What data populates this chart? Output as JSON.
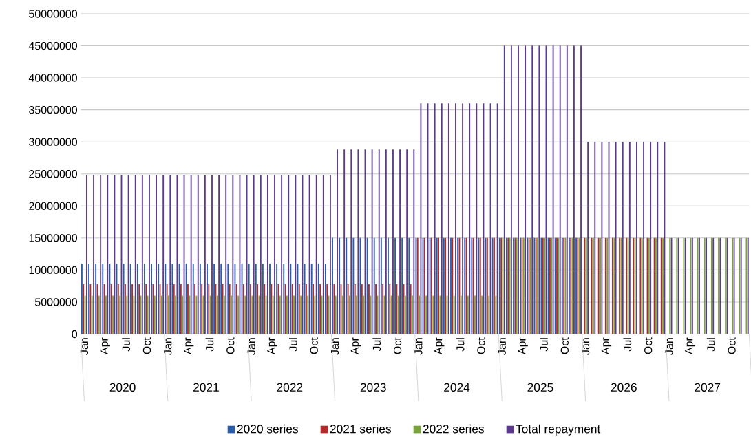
{
  "chart_data": {
    "type": "bar",
    "categories": [
      "Jan",
      null,
      null,
      "Apr",
      null,
      null,
      "Jul",
      null,
      null,
      "Oct",
      null,
      null,
      "Jan",
      null,
      null,
      "Apr",
      null,
      null,
      "Jul",
      null,
      null,
      "Oct",
      null,
      null,
      "Jan",
      null,
      null,
      "Apr",
      null,
      null,
      "Jul",
      null,
      null,
      "Oct",
      null,
      null,
      "Jan",
      null,
      null,
      "Apr",
      null,
      null,
      "Jul",
      null,
      null,
      "Oct",
      null,
      null,
      "Jan",
      null,
      null,
      "Apr",
      null,
      null,
      "Jul",
      null,
      null,
      "Oct",
      null,
      null,
      "Jan",
      null,
      null,
      "Apr",
      null,
      null,
      "Jul",
      null,
      null,
      "Oct",
      null,
      null,
      "Jan",
      null,
      null,
      "Apr",
      null,
      null,
      "Jul",
      null,
      null,
      "Oct",
      null,
      null,
      "Jan",
      null,
      null,
      "Apr",
      null,
      null,
      "Jul",
      null,
      null,
      "Oct",
      null,
      null
    ],
    "annotations": [
      "2020",
      "2021",
      "2022",
      "2023",
      "2024",
      "2025",
      "2026",
      "2027"
    ],
    "series": [
      {
        "name": "2020 series",
        "color": "#2a5caa",
        "values": [
          11000000,
          11000000,
          11000000,
          11000000,
          11000000,
          11000000,
          11000000,
          11000000,
          11000000,
          11000000,
          11000000,
          11000000,
          11000000,
          11000000,
          11000000,
          11000000,
          11000000,
          11000000,
          11000000,
          11000000,
          11000000,
          11000000,
          11000000,
          11000000,
          11000000,
          11000000,
          11000000,
          11000000,
          11000000,
          11000000,
          11000000,
          11000000,
          11000000,
          11000000,
          11000000,
          11000000,
          15000000,
          15000000,
          15000000,
          15000000,
          15000000,
          15000000,
          15000000,
          15000000,
          15000000,
          15000000,
          15000000,
          15000000,
          15000000,
          15000000,
          15000000,
          15000000,
          15000000,
          15000000,
          15000000,
          15000000,
          15000000,
          15000000,
          15000000,
          15000000,
          15000000,
          15000000,
          15000000,
          15000000,
          15000000,
          15000000,
          15000000,
          15000000,
          15000000,
          15000000,
          15000000,
          15000000,
          0,
          0,
          0,
          0,
          0,
          0,
          0,
          0,
          0,
          0,
          0,
          0,
          0,
          0,
          0,
          0,
          0,
          0,
          0,
          0,
          0,
          0,
          0,
          0
        ]
      },
      {
        "name": "2021 series",
        "color": "#b22a2a",
        "values": [
          7800000,
          7800000,
          7800000,
          7800000,
          7800000,
          7800000,
          7800000,
          7800000,
          7800000,
          7800000,
          7800000,
          7800000,
          7800000,
          7800000,
          7800000,
          7800000,
          7800000,
          7800000,
          7800000,
          7800000,
          7800000,
          7800000,
          7800000,
          7800000,
          7800000,
          7800000,
          7800000,
          7800000,
          7800000,
          7800000,
          7800000,
          7800000,
          7800000,
          7800000,
          7800000,
          7800000,
          7800000,
          7800000,
          7800000,
          7800000,
          7800000,
          7800000,
          7800000,
          7800000,
          7800000,
          7800000,
          7800000,
          7800000,
          15000000,
          15000000,
          15000000,
          15000000,
          15000000,
          15000000,
          15000000,
          15000000,
          15000000,
          15000000,
          15000000,
          15000000,
          15000000,
          15000000,
          15000000,
          15000000,
          15000000,
          15000000,
          15000000,
          15000000,
          15000000,
          15000000,
          15000000,
          15000000,
          15000000,
          15000000,
          15000000,
          15000000,
          15000000,
          15000000,
          15000000,
          15000000,
          15000000,
          15000000,
          15000000,
          15000000,
          0,
          0,
          0,
          0,
          0,
          0,
          0,
          0,
          0,
          0,
          0,
          0
        ]
      },
      {
        "name": "2022 series",
        "color": "#77a33a",
        "values": [
          6000000,
          6000000,
          6000000,
          6000000,
          6000000,
          6000000,
          6000000,
          6000000,
          6000000,
          6000000,
          6000000,
          6000000,
          6000000,
          6000000,
          6000000,
          6000000,
          6000000,
          6000000,
          6000000,
          6000000,
          6000000,
          6000000,
          6000000,
          6000000,
          6000000,
          6000000,
          6000000,
          6000000,
          6000000,
          6000000,
          6000000,
          6000000,
          6000000,
          6000000,
          6000000,
          6000000,
          6000000,
          6000000,
          6000000,
          6000000,
          6000000,
          6000000,
          6000000,
          6000000,
          6000000,
          6000000,
          6000000,
          6000000,
          6000000,
          6000000,
          6000000,
          6000000,
          6000000,
          6000000,
          6000000,
          6000000,
          6000000,
          6000000,
          6000000,
          6000000,
          15000000,
          15000000,
          15000000,
          15000000,
          15000000,
          15000000,
          15000000,
          15000000,
          15000000,
          15000000,
          15000000,
          15000000,
          15000000,
          15000000,
          15000000,
          15000000,
          15000000,
          15000000,
          15000000,
          15000000,
          15000000,
          15000000,
          15000000,
          15000000,
          15000000,
          15000000,
          15000000,
          15000000,
          15000000,
          15000000,
          15000000,
          15000000,
          15000000,
          15000000,
          15000000,
          15000000
        ]
      },
      {
        "name": "Total repayment",
        "color": "#5b3a8e",
        "values": [
          24800000,
          24800000,
          24800000,
          24800000,
          24800000,
          24800000,
          24800000,
          24800000,
          24800000,
          24800000,
          24800000,
          24800000,
          24800000,
          24800000,
          24800000,
          24800000,
          24800000,
          24800000,
          24800000,
          24800000,
          24800000,
          24800000,
          24800000,
          24800000,
          24800000,
          24800000,
          24800000,
          24800000,
          24800000,
          24800000,
          24800000,
          24800000,
          24800000,
          24800000,
          24800000,
          24800000,
          28800000,
          28800000,
          28800000,
          28800000,
          28800000,
          28800000,
          28800000,
          28800000,
          28800000,
          28800000,
          28800000,
          28800000,
          36000000,
          36000000,
          36000000,
          36000000,
          36000000,
          36000000,
          36000000,
          36000000,
          36000000,
          36000000,
          36000000,
          36000000,
          45000000,
          45000000,
          45000000,
          45000000,
          45000000,
          45000000,
          45000000,
          45000000,
          45000000,
          45000000,
          45000000,
          45000000,
          30000000,
          30000000,
          30000000,
          30000000,
          30000000,
          30000000,
          30000000,
          30000000,
          30000000,
          30000000,
          30000000,
          30000000,
          15000000,
          15000000,
          15000000,
          15000000,
          15000000,
          15000000,
          15000000,
          15000000,
          15000000,
          15000000,
          15000000,
          15000000
        ]
      }
    ],
    "ylim": [
      0,
      50000000
    ],
    "yticks": [
      0,
      5000000,
      10000000,
      15000000,
      20000000,
      25000000,
      30000000,
      35000000,
      40000000,
      45000000,
      50000000
    ],
    "grid": "y",
    "legend": "bottom"
  }
}
